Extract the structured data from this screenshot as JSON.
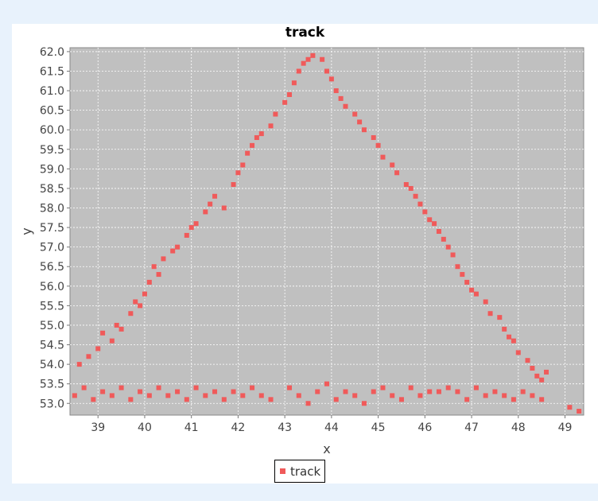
{
  "chart_data": {
    "type": "scatter",
    "title": "track",
    "xlabel": "x",
    "ylabel": "y",
    "xlim": [
      38.4,
      49.4
    ],
    "ylim": [
      52.7,
      62.1
    ],
    "x_ticks": [
      "39",
      "40",
      "41",
      "42",
      "43",
      "44",
      "45",
      "46",
      "47",
      "48",
      "49"
    ],
    "y_ticks": [
      "53.0",
      "53.5",
      "54.0",
      "54.5",
      "55.0",
      "55.5",
      "56.0",
      "56.5",
      "57.0",
      "57.5",
      "58.0",
      "58.5",
      "59.0",
      "59.5",
      "60.0",
      "60.5",
      "61.0",
      "61.5",
      "62.0"
    ],
    "grid": true,
    "legend_position": "bottom-center",
    "series": [
      {
        "name": "track",
        "color": "#f05a5a",
        "marker": "square",
        "points": [
          [
            38.5,
            53.2
          ],
          [
            38.7,
            53.4
          ],
          [
            38.9,
            53.1
          ],
          [
            39.1,
            53.3
          ],
          [
            39.3,
            53.2
          ],
          [
            39.5,
            53.4
          ],
          [
            39.7,
            53.1
          ],
          [
            39.9,
            53.3
          ],
          [
            40.1,
            53.2
          ],
          [
            40.3,
            53.4
          ],
          [
            40.5,
            53.2
          ],
          [
            40.7,
            53.3
          ],
          [
            40.9,
            53.1
          ],
          [
            41.1,
            53.4
          ],
          [
            41.3,
            53.2
          ],
          [
            41.5,
            53.3
          ],
          [
            41.7,
            53.1
          ],
          [
            41.9,
            53.3
          ],
          [
            42.1,
            53.2
          ],
          [
            42.3,
            53.4
          ],
          [
            42.5,
            53.2
          ],
          [
            42.7,
            53.1
          ],
          [
            43.1,
            53.4
          ],
          [
            43.3,
            53.2
          ],
          [
            43.5,
            53.0
          ],
          [
            43.7,
            53.3
          ],
          [
            43.9,
            53.5
          ],
          [
            44.1,
            53.1
          ],
          [
            44.3,
            53.3
          ],
          [
            44.5,
            53.2
          ],
          [
            44.7,
            53.0
          ],
          [
            44.9,
            53.3
          ],
          [
            45.1,
            53.4
          ],
          [
            45.3,
            53.2
          ],
          [
            45.5,
            53.1
          ],
          [
            45.7,
            53.4
          ],
          [
            45.9,
            53.2
          ],
          [
            46.1,
            53.3
          ],
          [
            46.3,
            53.3
          ],
          [
            46.5,
            53.4
          ],
          [
            46.7,
            53.3
          ],
          [
            46.9,
            53.1
          ],
          [
            47.1,
            53.4
          ],
          [
            47.3,
            53.2
          ],
          [
            47.5,
            53.3
          ],
          [
            47.7,
            53.2
          ],
          [
            47.9,
            53.1
          ],
          [
            48.1,
            53.3
          ],
          [
            48.3,
            53.2
          ],
          [
            48.5,
            53.1
          ],
          [
            49.1,
            52.9
          ],
          [
            49.3,
            52.8
          ],
          [
            38.6,
            54.0
          ],
          [
            38.8,
            54.2
          ],
          [
            39.0,
            54.4
          ],
          [
            39.1,
            54.8
          ],
          [
            39.3,
            54.6
          ],
          [
            39.4,
            55.0
          ],
          [
            39.5,
            54.9
          ],
          [
            39.7,
            55.3
          ],
          [
            39.8,
            55.6
          ],
          [
            39.9,
            55.5
          ],
          [
            40.0,
            55.8
          ],
          [
            40.1,
            56.1
          ],
          [
            40.2,
            56.5
          ],
          [
            40.3,
            56.3
          ],
          [
            40.4,
            56.7
          ],
          [
            40.6,
            56.9
          ],
          [
            40.7,
            57.0
          ],
          [
            40.9,
            57.3
          ],
          [
            41.0,
            57.5
          ],
          [
            41.1,
            57.6
          ],
          [
            41.3,
            57.9
          ],
          [
            41.4,
            58.1
          ],
          [
            41.5,
            58.3
          ],
          [
            41.7,
            58.0
          ],
          [
            41.9,
            58.6
          ],
          [
            42.0,
            58.9
          ],
          [
            42.1,
            59.1
          ],
          [
            42.2,
            59.4
          ],
          [
            42.3,
            59.6
          ],
          [
            42.4,
            59.8
          ],
          [
            42.5,
            59.9
          ],
          [
            42.7,
            60.1
          ],
          [
            42.8,
            60.4
          ],
          [
            43.0,
            60.7
          ],
          [
            43.1,
            60.9
          ],
          [
            43.2,
            61.2
          ],
          [
            43.3,
            61.5
          ],
          [
            43.4,
            61.7
          ],
          [
            43.5,
            61.8
          ],
          [
            43.6,
            61.9
          ],
          [
            43.8,
            61.8
          ],
          [
            43.9,
            61.5
          ],
          [
            44.0,
            61.3
          ],
          [
            44.1,
            61.0
          ],
          [
            44.2,
            60.8
          ],
          [
            44.3,
            60.6
          ],
          [
            44.5,
            60.4
          ],
          [
            44.6,
            60.2
          ],
          [
            44.7,
            60.0
          ],
          [
            44.9,
            59.8
          ],
          [
            45.0,
            59.6
          ],
          [
            45.1,
            59.3
          ],
          [
            45.3,
            59.1
          ],
          [
            45.4,
            58.9
          ],
          [
            45.6,
            58.6
          ],
          [
            45.7,
            58.5
          ],
          [
            45.8,
            58.3
          ],
          [
            45.9,
            58.1
          ],
          [
            46.0,
            57.9
          ],
          [
            46.1,
            57.7
          ],
          [
            46.2,
            57.6
          ],
          [
            46.3,
            57.4
          ],
          [
            46.4,
            57.2
          ],
          [
            46.5,
            57.0
          ],
          [
            46.6,
            56.8
          ],
          [
            46.7,
            56.5
          ],
          [
            46.8,
            56.3
          ],
          [
            46.9,
            56.1
          ],
          [
            47.0,
            55.9
          ],
          [
            47.1,
            55.8
          ],
          [
            47.3,
            55.6
          ],
          [
            47.4,
            55.3
          ],
          [
            47.6,
            55.2
          ],
          [
            47.7,
            54.9
          ],
          [
            47.8,
            54.7
          ],
          [
            47.9,
            54.6
          ],
          [
            48.0,
            54.3
          ],
          [
            48.2,
            54.1
          ],
          [
            48.3,
            53.9
          ],
          [
            48.4,
            53.7
          ],
          [
            48.5,
            53.6
          ],
          [
            48.6,
            53.8
          ]
        ]
      }
    ]
  }
}
